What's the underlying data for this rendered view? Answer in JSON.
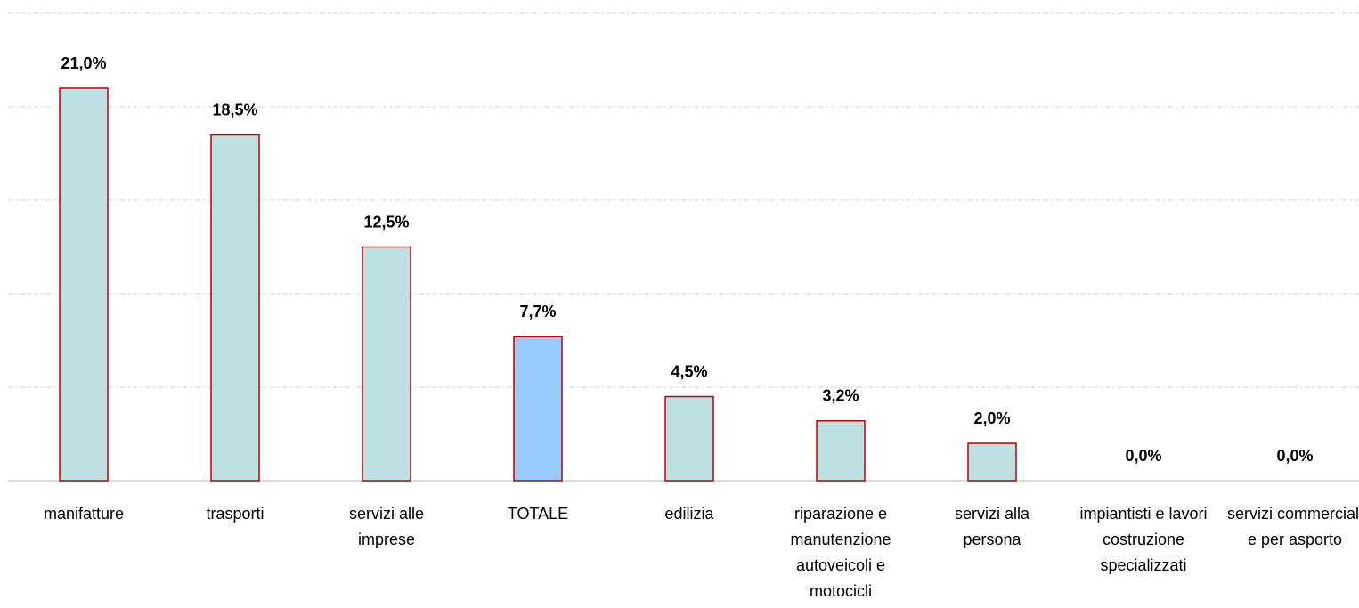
{
  "chart_data": {
    "type": "bar",
    "categories": [
      "manifatture",
      "trasporti",
      "servizi alle imprese",
      "TOTALE",
      "edilizia",
      "riparazione e manutenzione autoveicoli e motocicli",
      "servizi alla persona",
      "impiantisti e lavori costruzione specializzati",
      "servizi commerciali e per asporto"
    ],
    "values": [
      21.0,
      18.5,
      12.5,
      7.7,
      4.5,
      3.2,
      2.0,
      0.0,
      0.0
    ],
    "value_labels": [
      "21,0%",
      "18,5%",
      "12,5%",
      "7,7%",
      "4,5%",
      "3,2%",
      "2,0%",
      "0,0%",
      "0,0%"
    ],
    "colors": [
      "#bde0e3",
      "#bde0e3",
      "#bde0e3",
      "#99cbff",
      "#bde0e3",
      "#bde0e3",
      "#bde0e3",
      "#bde0e3",
      "#bde0e3"
    ],
    "edge_color": "#c00000",
    "ylim": [
      0,
      25
    ],
    "yticks": [
      0,
      5,
      10,
      15,
      20,
      25
    ],
    "grid": true
  }
}
